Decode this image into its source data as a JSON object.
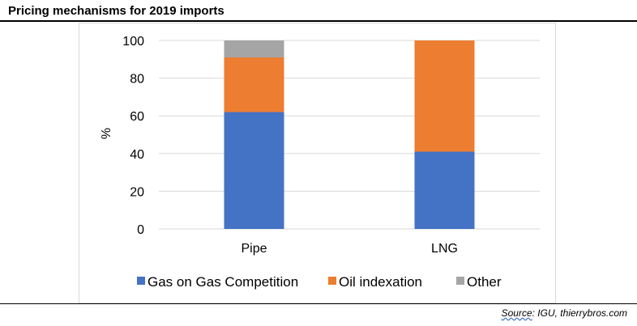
{
  "header": {
    "title": "Pricing mechanisms for 2019 imports"
  },
  "footer": {
    "source_prefix": "Source",
    "source_rest": ": IGU, thierrybros.com"
  },
  "chart_data": {
    "type": "bar",
    "stacked": true,
    "categories": [
      "Pipe",
      "LNG"
    ],
    "series": [
      {
        "name": "Gas on Gas Competition",
        "values": [
          62,
          41
        ],
        "color": "#4472c4"
      },
      {
        "name": "Oil indexation",
        "values": [
          29,
          59
        ],
        "color": "#ed7d31"
      },
      {
        "name": "Other",
        "values": [
          9,
          0
        ],
        "color": "#a5a5a5"
      }
    ],
    "title": "Pricing mechanisms for 2019 imports",
    "xlabel": "",
    "ylabel": "%",
    "ylim": [
      0,
      100
    ],
    "yticks": [
      0,
      20,
      40,
      60,
      80,
      100
    ],
    "grid": true,
    "legend_position": "bottom"
  }
}
